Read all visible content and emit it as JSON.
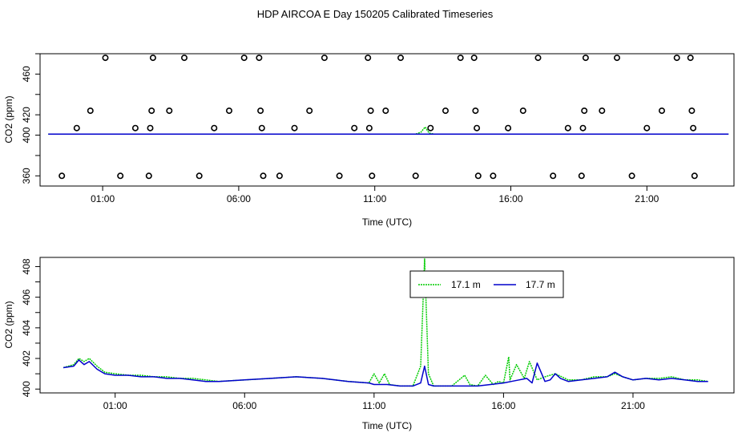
{
  "title": "HDP AIRCOA E  Day 150205  Calibrated Timeseries",
  "chart_data": [
    {
      "type": "line",
      "panel": "top",
      "xlabel": "Time (UTC)",
      "ylabel": "CO2 (ppm)",
      "xlim": [
        -1.3,
        24.2
      ],
      "ylim": [
        350,
        480
      ],
      "xtick_values": [
        1,
        6,
        11,
        16,
        21
      ],
      "xtick_labels": [
        "01:00",
        "06:00",
        "11:00",
        "16:00",
        "21:00"
      ],
      "ytick_values": [
        360,
        400,
        420,
        460
      ],
      "ytick_labels": [
        "360",
        "400",
        "420",
        "460"
      ],
      "grid": false,
      "series": [
        {
          "name": "",
          "color": "#00cc00",
          "style": "dotted",
          "x": [
            -1.0,
            12.5,
            12.7,
            12.85,
            13.0,
            13.2,
            24.0
          ],
          "y": [
            401,
            401,
            403,
            408,
            402,
            401,
            401
          ]
        },
        {
          "name": "",
          "color": "#0000cc",
          "style": "solid",
          "x": [
            -1.0,
            24.0
          ],
          "y": [
            401,
            401
          ]
        }
      ],
      "markers": {
        "symbol": "circle-open",
        "color": "#000000",
        "points": [
          [
            -0.5,
            360
          ],
          [
            0.05,
            407
          ],
          [
            0.55,
            424
          ],
          [
            1.1,
            476
          ],
          [
            1.65,
            360
          ],
          [
            2.2,
            407
          ],
          [
            2.7,
            360
          ],
          [
            2.75,
            407
          ],
          [
            2.8,
            424
          ],
          [
            2.85,
            476
          ],
          [
            3.45,
            424
          ],
          [
            4.0,
            476
          ],
          [
            4.55,
            360
          ],
          [
            5.1,
            407
          ],
          [
            5.65,
            424
          ],
          [
            6.2,
            476
          ],
          [
            6.75,
            476
          ],
          [
            6.8,
            424
          ],
          [
            6.85,
            407
          ],
          [
            6.9,
            360
          ],
          [
            7.5,
            360
          ],
          [
            8.05,
            407
          ],
          [
            8.6,
            424
          ],
          [
            9.15,
            476
          ],
          [
            9.7,
            360
          ],
          [
            10.25,
            407
          ],
          [
            10.75,
            476
          ],
          [
            10.8,
            407
          ],
          [
            10.85,
            424
          ],
          [
            10.9,
            360
          ],
          [
            11.4,
            424
          ],
          [
            11.95,
            476
          ],
          [
            12.5,
            360
          ],
          [
            13.05,
            407
          ],
          [
            13.6,
            424
          ],
          [
            14.15,
            476
          ],
          [
            14.65,
            476
          ],
          [
            14.7,
            424
          ],
          [
            14.75,
            407
          ],
          [
            14.8,
            360
          ],
          [
            15.35,
            360
          ],
          [
            15.9,
            407
          ],
          [
            16.45,
            424
          ],
          [
            17.0,
            476
          ],
          [
            17.55,
            360
          ],
          [
            18.1,
            407
          ],
          [
            18.6,
            360
          ],
          [
            18.65,
            407
          ],
          [
            18.7,
            424
          ],
          [
            18.75,
            476
          ],
          [
            19.35,
            424
          ],
          [
            19.9,
            476
          ],
          [
            20.45,
            360
          ],
          [
            21.0,
            407
          ],
          [
            21.55,
            424
          ],
          [
            22.1,
            476
          ],
          [
            22.6,
            476
          ],
          [
            22.65,
            424
          ],
          [
            22.7,
            407
          ],
          [
            22.75,
            360
          ]
        ]
      }
    },
    {
      "type": "line",
      "panel": "bottom",
      "xlabel": "Time (UTC)",
      "ylabel": "CO2 (ppm)",
      "xlim": [
        -1.9,
        24.9
      ],
      "ylim": [
        399.75,
        408.6
      ],
      "xtick_values": [
        1,
        6,
        11,
        16,
        21
      ],
      "xtick_labels": [
        "01:00",
        "06:00",
        "11:00",
        "16:00",
        "21:00"
      ],
      "ytick_values": [
        400,
        402,
        404,
        406,
        408
      ],
      "ytick_labels": [
        "400",
        "402",
        "404",
        "406",
        "408"
      ],
      "grid": false,
      "legend": {
        "placement": "top-center",
        "entries": [
          {
            "label": "17.1 m",
            "color": "#00cc00",
            "style": "dotted"
          },
          {
            "label": "17.7 m",
            "color": "#0000cc",
            "style": "solid"
          }
        ]
      },
      "series": [
        {
          "name": "17.1 m",
          "color": "#00cc00",
          "style": "dotted",
          "x": [
            -1.0,
            -0.6,
            -0.4,
            -0.2,
            0.0,
            0.3,
            0.6,
            1.0,
            1.5,
            2.0,
            2.5,
            3.0,
            3.5,
            4.0,
            4.5,
            5.0,
            6.0,
            7.0,
            8.0,
            9.0,
            10.0,
            10.8,
            11.0,
            11.2,
            11.4,
            11.6,
            12.0,
            12.5,
            12.8,
            12.95,
            13.1,
            13.3,
            13.6,
            14.0,
            14.5,
            14.7,
            15.0,
            15.3,
            15.6,
            15.8,
            16.0,
            16.2,
            16.25,
            16.5,
            16.8,
            17.0,
            17.3,
            17.6,
            18.0,
            18.5,
            19.0,
            19.5,
            20.0,
            20.3,
            20.6,
            21.0,
            21.5,
            22.0,
            22.5,
            23.0,
            23.5,
            23.9
          ],
          "y": [
            401.4,
            401.6,
            402.0,
            401.8,
            402.0,
            401.5,
            401.1,
            401.0,
            400.9,
            400.9,
            400.8,
            400.8,
            400.7,
            400.7,
            400.6,
            400.5,
            400.6,
            400.7,
            400.8,
            400.7,
            400.5,
            400.4,
            401.0,
            400.4,
            401.0,
            400.3,
            400.2,
            400.2,
            401.5,
            408.5,
            401.0,
            400.2,
            400.2,
            400.2,
            400.9,
            400.3,
            400.2,
            400.9,
            400.3,
            400.5,
            400.4,
            402.1,
            400.6,
            401.6,
            400.7,
            401.8,
            400.6,
            400.8,
            401.0,
            400.6,
            400.6,
            400.8,
            400.8,
            401.0,
            400.8,
            400.6,
            400.7,
            400.7,
            400.8,
            400.6,
            400.6,
            400.5
          ]
        },
        {
          "name": "17.7 m",
          "color": "#0000cc",
          "style": "solid",
          "x": [
            -1.0,
            -0.6,
            -0.4,
            -0.2,
            0.0,
            0.3,
            0.6,
            1.0,
            1.5,
            2.0,
            2.5,
            3.0,
            3.5,
            4.0,
            4.5,
            5.0,
            6.0,
            7.0,
            8.0,
            9.0,
            10.0,
            10.8,
            11.0,
            11.5,
            12.0,
            12.5,
            12.8,
            12.95,
            13.1,
            13.3,
            13.6,
            14.0,
            14.5,
            15.0,
            15.5,
            16.0,
            16.3,
            16.6,
            16.9,
            17.1,
            17.3,
            17.6,
            17.8,
            18.0,
            18.2,
            18.5,
            19.0,
            19.5,
            20.0,
            20.3,
            20.6,
            21.0,
            21.5,
            22.0,
            22.5,
            23.0,
            23.5,
            23.9
          ],
          "y": [
            401.4,
            401.5,
            401.9,
            401.6,
            401.8,
            401.3,
            401.0,
            400.9,
            400.9,
            400.8,
            400.8,
            400.7,
            400.7,
            400.6,
            400.5,
            400.5,
            400.6,
            400.7,
            400.8,
            400.7,
            400.5,
            400.4,
            400.3,
            400.3,
            400.2,
            400.2,
            400.4,
            401.5,
            400.3,
            400.2,
            400.2,
            400.2,
            400.2,
            400.2,
            400.3,
            400.4,
            400.5,
            400.6,
            400.7,
            400.4,
            401.7,
            400.5,
            400.6,
            401.0,
            400.7,
            400.5,
            400.6,
            400.7,
            400.8,
            401.1,
            400.8,
            400.6,
            400.7,
            400.6,
            400.7,
            400.6,
            400.5,
            400.5
          ]
        }
      ]
    }
  ]
}
